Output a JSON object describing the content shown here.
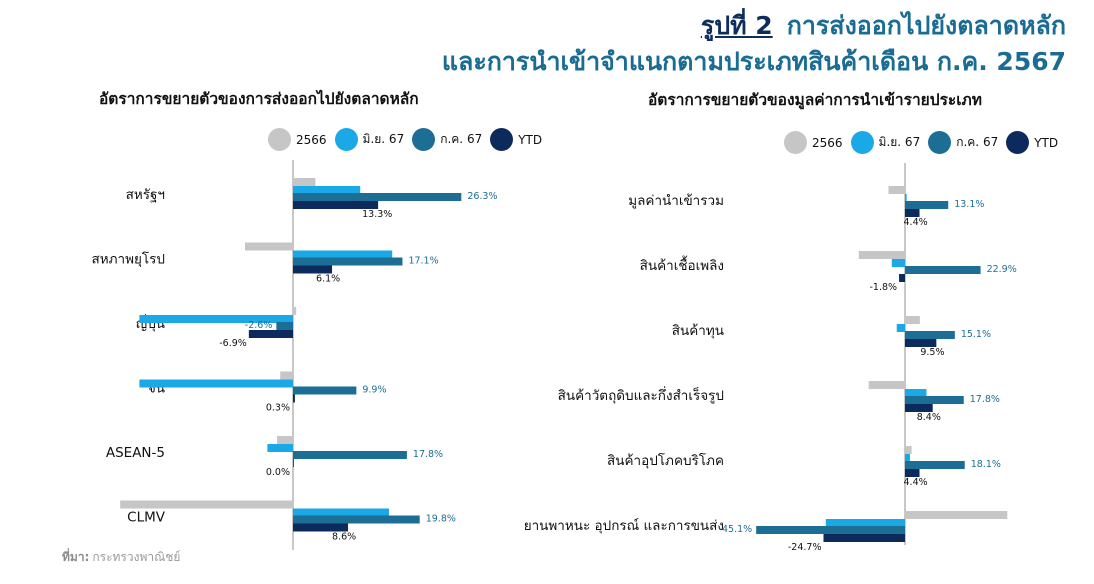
{
  "header": {
    "figure_label": "รูปที่ 2",
    "title_line1": "การส่งออกไปยังตลาดหลัก",
    "title_line2": "และการนำเข้าจำแนกตามประเภทสินค้าเดือน ก.ค. 2567"
  },
  "footer": {
    "source_label": "ที่มา:",
    "source_text": "กระทรวงพาณิชย์"
  },
  "colors": {
    "2566": "#c6c6c6",
    "jun67": "#1aa9e6",
    "jul67": "#1c6e95",
    "ytd": "#0d2a5c"
  },
  "chart_data": [
    {
      "type": "bar",
      "orientation": "horizontal",
      "title": "อัตราการขยายตัวของการส่งออกไปยังตลาดหลัก",
      "legend": [
        "2566",
        "มิ.ย. 67",
        "ก.ค. 67",
        "YTD"
      ],
      "legend_position": "top",
      "grid": false,
      "xlim": [
        -27,
        52
      ],
      "categories": [
        "สหรัฐฯ",
        "สหภาพยุโรป",
        "ญี่ปุ่น",
        "จีน",
        "ASEAN-5",
        "CLMV"
      ],
      "series": [
        {
          "name": "2566",
          "values": [
            3.5,
            -7.5,
            0.5,
            -2.0,
            -2.5,
            -27.0
          ]
        },
        {
          "name": "มิ.ย. 67",
          "values": [
            10.5,
            15.5,
            -24.0,
            -24.0,
            -4.0,
            15.0
          ]
        },
        {
          "name": "ก.ค. 67",
          "values": [
            26.3,
            17.1,
            -2.6,
            9.9,
            17.8,
            19.8
          ]
        },
        {
          "name": "YTD",
          "values": [
            13.3,
            6.1,
            -6.9,
            0.3,
            0.0,
            8.6
          ]
        }
      ],
      "value_labels": [
        {
          "julLabel": "26.3%",
          "ytdLabel": "13.3%"
        },
        {
          "julLabel": "17.1%",
          "ytdLabel": "6.1%"
        },
        {
          "julLabel": "-2.6%",
          "ytdLabel": "-6.9%"
        },
        {
          "julLabel": "9.9%",
          "ytdLabel": "0.3%"
        },
        {
          "julLabel": "17.8%",
          "ytdLabel": "0.0%"
        },
        {
          "julLabel": "19.8%",
          "ytdLabel": "8.6%"
        }
      ]
    },
    {
      "type": "bar",
      "orientation": "horizontal",
      "title": "อัตราการขยายตัวของมูลค่าการนำเข้ารายประเภท",
      "legend": [
        "2566",
        "มิ.ย. 67",
        "ก.ค. 67",
        "YTD"
      ],
      "legend_position": "top",
      "grid": false,
      "xlim": [
        -47,
        32
      ],
      "categories": [
        "มูลค่านำเข้ารวม",
        "สินค้าเชื้อเพลิง",
        "สินค้าทุน",
        "สินค้าวัตถุดิบและกึ่งสำเร็จรูป",
        "สินค้าอุปโภคบริโภค",
        "ยานพาหนะ อุปกรณ์ และการขนส่ง"
      ],
      "series": [
        {
          "name": "2566",
          "values": [
            -5.0,
            -14.0,
            4.5,
            -11.0,
            2.0,
            31.0
          ]
        },
        {
          "name": "มิ.ย. 67",
          "values": [
            0.5,
            -4.0,
            -2.5,
            6.5,
            1.5,
            -24.0
          ]
        },
        {
          "name": "ก.ค. 67",
          "values": [
            13.1,
            22.9,
            15.1,
            17.8,
            18.1,
            -45.1
          ]
        },
        {
          "name": "YTD",
          "values": [
            4.4,
            -1.8,
            9.5,
            8.4,
            4.4,
            -24.7
          ]
        }
      ],
      "value_labels": [
        {
          "julLabel": "13.1%",
          "ytdLabel": "4.4%"
        },
        {
          "julLabel": "22.9%",
          "ytdLabel": "-1.8%"
        },
        {
          "julLabel": "15.1%",
          "ytdLabel": "9.5%"
        },
        {
          "julLabel": "17.8%",
          "ytdLabel": "8.4%"
        },
        {
          "julLabel": "18.1%",
          "ytdLabel": "4.4%"
        },
        {
          "julLabel": "-45.1%",
          "ytdLabel": "-24.7%"
        }
      ]
    }
  ]
}
